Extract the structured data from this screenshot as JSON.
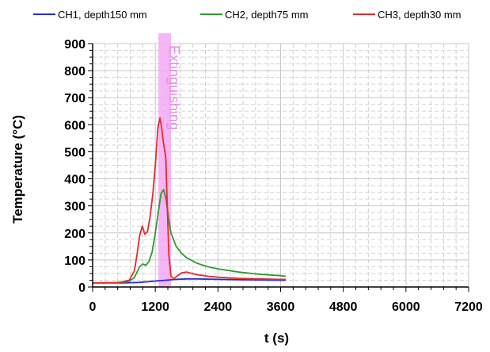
{
  "chart_data": {
    "type": "line",
    "xlabel": "t (s)",
    "ylabel": "Temperature (°C)",
    "xlim": [
      0,
      7200
    ],
    "ylim": [
      0,
      900
    ],
    "x_ticks": [
      "0",
      "1200",
      "2400",
      "3600",
      "4800",
      "6000",
      "7200"
    ],
    "y_ticks": [
      "0",
      "100",
      "200",
      "300",
      "400",
      "500",
      "600",
      "700",
      "800",
      "900"
    ],
    "grid": true,
    "legend_position": "top",
    "annotation": {
      "text": "Extinguishing",
      "band": [
        1260,
        1500
      ],
      "color": "#f3a8f5"
    },
    "series": [
      {
        "name": "CH1, depth150 mm",
        "color": "#2b2bd6",
        "x": [
          0,
          600,
          900,
          1200,
          1400,
          1600,
          1800,
          2000,
          2400,
          2800,
          3200,
          3600,
          3700
        ],
        "y": [
          15,
          15,
          17,
          22,
          25,
          28,
          30,
          30,
          28,
          27,
          26,
          25,
          25
        ]
      },
      {
        "name": "CH2, depth75 mm",
        "color": "#2e9a2e",
        "x": [
          0,
          400,
          600,
          700,
          800,
          900,
          960,
          1020,
          1080,
          1140,
          1200,
          1260,
          1310,
          1360,
          1400,
          1450,
          1500,
          1600,
          1700,
          1800,
          2000,
          2200,
          2400,
          2800,
          3200,
          3600,
          3700
        ],
        "y": [
          15,
          16,
          18,
          22,
          35,
          75,
          85,
          80,
          95,
          130,
          200,
          280,
          345,
          360,
          330,
          260,
          200,
          150,
          125,
          108,
          88,
          75,
          67,
          55,
          47,
          42,
          40
        ]
      },
      {
        "name": "CH3, depth30 mm",
        "color": "#e52b2b",
        "x": [
          0,
          500,
          700,
          800,
          850,
          900,
          950,
          1000,
          1050,
          1100,
          1150,
          1200,
          1250,
          1290,
          1320,
          1350,
          1400,
          1430,
          1460,
          1500,
          1550,
          1600,
          1700,
          1800,
          1900,
          2000,
          2100,
          2200,
          2400,
          2800,
          3200,
          3600,
          3700
        ],
        "y": [
          15,
          16,
          25,
          60,
          120,
          190,
          225,
          195,
          205,
          260,
          340,
          450,
          590,
          625,
          590,
          540,
          480,
          300,
          120,
          40,
          30,
          38,
          52,
          55,
          50,
          45,
          43,
          40,
          36,
          32,
          30,
          28,
          28
        ]
      }
    ]
  }
}
